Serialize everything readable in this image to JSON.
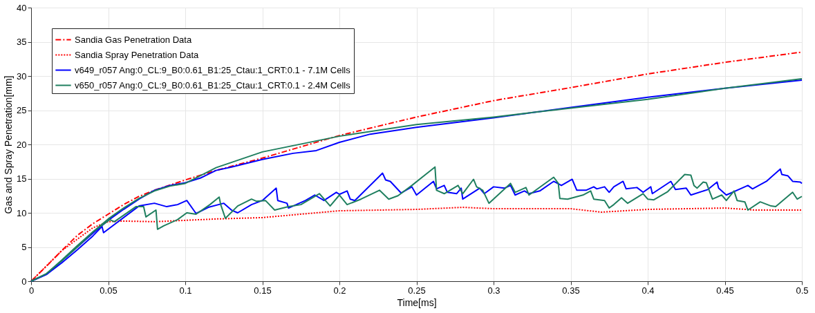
{
  "chart_data": {
    "type": "line",
    "xlabel": "Time[ms]",
    "ylabel": "Gas and Spray Penetration[mm]",
    "xlim": [
      0,
      0.5
    ],
    "ylim": [
      0,
      40
    ],
    "xticks": [
      0,
      0.05,
      0.1,
      0.15,
      0.2,
      0.25,
      0.3,
      0.35,
      0.4,
      0.45,
      0.5
    ],
    "yticks": [
      0,
      5,
      10,
      15,
      20,
      25,
      30,
      35,
      40
    ],
    "grid": true,
    "legend": "top left",
    "marker": "none",
    "series": [
      {
        "name": "Sandia Gas Penetration Data",
        "color": "#ff0000",
        "line_style": "dashed",
        "x": [
          0,
          0.01,
          0.02,
          0.03,
          0.04,
          0.05,
          0.06,
          0.07,
          0.08,
          0.1,
          0.12,
          0.15,
          0.2,
          0.25,
          0.3,
          0.35,
          0.4,
          0.45,
          0.5
        ],
        "values": [
          0,
          2.2,
          4.5,
          6.7,
          8.4,
          9.8,
          11.2,
          12.4,
          13.3,
          14.8,
          16.2,
          18,
          21.3,
          24,
          26.4,
          28.3,
          30.3,
          32,
          33.5
        ]
      },
      {
        "name": "Sandia Spray Penetration Data",
        "color": "#ff0000",
        "line_style": "dotted",
        "x": [
          0,
          0.02,
          0.04,
          0.05,
          0.06,
          0.08,
          0.1,
          0.12,
          0.15,
          0.2,
          0.25,
          0.28,
          0.3,
          0.35,
          0.37,
          0.4,
          0.45,
          0.47,
          0.5
        ],
        "values": [
          0,
          4.5,
          7.8,
          8.7,
          8.8,
          8.7,
          8.9,
          9.1,
          9.3,
          10.3,
          10.5,
          10.8,
          10.6,
          10.6,
          10.1,
          10.5,
          10.7,
          10.4,
          10.4
        ]
      },
      {
        "name": "v649_r057 Ang:0_CL:9_B0:0.61_B1:25_Ctau:1_CRT:0.1 - 7.1M Cells",
        "color": "#0000ff",
        "line_style": "solid",
        "x": [
          0,
          0.01,
          0.02,
          0.03,
          0.04,
          0.05,
          0.06,
          0.07,
          0.08,
          0.09,
          0.1,
          0.11,
          0.12,
          0.13,
          0.15,
          0.17,
          0.185,
          0.2,
          0.22,
          0.25,
          0.3,
          0.35,
          0.4,
          0.45,
          0.5
        ],
        "values": [
          0,
          1,
          3,
          5,
          7,
          8.9,
          10.5,
          12,
          13.3,
          14,
          14.4,
          15.1,
          16.2,
          16.7,
          17.8,
          18.7,
          19.1,
          20.3,
          21.5,
          22.5,
          23.9,
          25.4,
          26.9,
          28.2,
          29.4
        ]
      },
      {
        "name": "v650_r057 Ang:0_CL:9_B0:0.61_B1:25_Ctau:1_CRT:0.1 - 2.4M Cells",
        "color": "#1f7f5f",
        "line_style": "solid",
        "x": [
          0,
          0.01,
          0.02,
          0.03,
          0.04,
          0.05,
          0.06,
          0.07,
          0.08,
          0.09,
          0.1,
          0.12,
          0.15,
          0.2,
          0.25,
          0.3,
          0.35,
          0.4,
          0.45,
          0.5
        ],
        "values": [
          0,
          1.1,
          3.1,
          5.2,
          7.2,
          9.1,
          10.7,
          12.1,
          13.2,
          13.9,
          14.3,
          16.6,
          18.9,
          21.2,
          22.9,
          24,
          25.3,
          26.6,
          28.2,
          29.6
        ]
      },
      {
        "color": "#0000ff",
        "line_style": "solid",
        "x": [
          0,
          0.01,
          0.02,
          0.03,
          0.04,
          0.046,
          0.047,
          0.07,
          0.08,
          0.088,
          0.095,
          0.101,
          0.107,
          0.115,
          0.125,
          0.13,
          0.134,
          0.143,
          0.15,
          0.159,
          0.16,
          0.166,
          0.167,
          0.178,
          0.184,
          0.19,
          0.198,
          0.2,
          0.205,
          0.207,
          0.21,
          0.228,
          0.23,
          0.233,
          0.24,
          0.247,
          0.25,
          0.261,
          0.263,
          0.268,
          0.27,
          0.276,
          0.279,
          0.28,
          0.291,
          0.294,
          0.3,
          0.307,
          0.311,
          0.314,
          0.32,
          0.323,
          0.33,
          0.339,
          0.344,
          0.351,
          0.354,
          0.36,
          0.365,
          0.367,
          0.372,
          0.375,
          0.378,
          0.384,
          0.386,
          0.393,
          0.397,
          0.402,
          0.403,
          0.415,
          0.418,
          0.425,
          0.428,
          0.439,
          0.445,
          0.446,
          0.451,
          0.461,
          0.465,
          0.468,
          0.477,
          0.486,
          0.487,
          0.491,
          0.494,
          0.499,
          0.5
        ],
        "values": [
          0,
          1,
          2.7,
          4.6,
          6.6,
          8,
          7.1,
          11,
          11.4,
          10.9,
          11.2,
          11.8,
          9.9,
          10.8,
          11.4,
          10.4,
          10,
          11.2,
          11.8,
          13.6,
          11.8,
          11.4,
          10.7,
          11.8,
          12.6,
          11.8,
          13,
          12.7,
          13.2,
          12,
          11.8,
          15.8,
          14.8,
          14.6,
          12.9,
          13.8,
          12.6,
          14.6,
          13.5,
          14,
          13,
          12.8,
          13.6,
          12,
          13.6,
          12.8,
          13.8,
          13.6,
          14,
          12.6,
          13.2,
          12.8,
          13.2,
          14.6,
          14,
          14.9,
          13.3,
          13.3,
          13.8,
          13.5,
          13.8,
          13,
          13.8,
          14.6,
          13.5,
          13.7,
          13,
          13.8,
          12.8,
          14.6,
          13.4,
          13.6,
          12.6,
          13.4,
          14.5,
          13.6,
          12.6,
          13.6,
          14,
          13.5,
          14.6,
          16.4,
          15.6,
          15.4,
          14.6,
          14.5,
          14.3
        ]
      },
      {
        "color": "#1f7f5f",
        "line_style": "solid",
        "x": [
          0,
          0.01,
          0.02,
          0.03,
          0.04,
          0.051,
          0.054,
          0.068,
          0.073,
          0.0745,
          0.081,
          0.082,
          0.086,
          0.095,
          0.101,
          0.107,
          0.116,
          0.122,
          0.123,
          0.126,
          0.134,
          0.143,
          0.146,
          0.152,
          0.158,
          0.167,
          0.175,
          0.187,
          0.194,
          0.2,
          0.205,
          0.214,
          0.226,
          0.232,
          0.238,
          0.247,
          0.262,
          0.263,
          0.268,
          0.277,
          0.28,
          0.287,
          0.289,
          0.293,
          0.297,
          0.311,
          0.314,
          0.321,
          0.323,
          0.339,
          0.342,
          0.343,
          0.348,
          0.358,
          0.363,
          0.365,
          0.372,
          0.375,
          0.378,
          0.383,
          0.387,
          0.397,
          0.4,
          0.404,
          0.413,
          0.424,
          0.428,
          0.43,
          0.432,
          0.436,
          0.438,
          0.442,
          0.448,
          0.451,
          0.456,
          0.458,
          0.463,
          0.465,
          0.473,
          0.48,
          0.483,
          0.494,
          0.497,
          0.5
        ],
        "values": [
          0,
          1.1,
          3,
          5,
          7.2,
          9,
          8.7,
          10.9,
          10.9,
          9.4,
          10.4,
          7.6,
          8.1,
          9,
          10,
          9.8,
          11.2,
          12.3,
          11.2,
          9.2,
          11,
          12,
          11.7,
          11.8,
          10.4,
          10.9,
          11.2,
          12.8,
          11,
          12.6,
          11.2,
          12,
          13.3,
          12,
          12.5,
          14,
          16.7,
          13.3,
          12.8,
          14,
          12.8,
          14.9,
          13.8,
          13.3,
          11.4,
          14.3,
          13,
          13.7,
          12.6,
          15.2,
          14.3,
          12.1,
          12,
          12.6,
          13.2,
          12,
          11.8,
          10.7,
          11.2,
          12.2,
          11.4,
          12.8,
          12,
          11.9,
          13.1,
          15.6,
          15.5,
          14,
          13.6,
          14.5,
          14.4,
          12,
          12.6,
          11.8,
          13.2,
          11.8,
          11.6,
          10.4,
          11.6,
          11,
          10.9,
          13,
          12,
          12.4
        ]
      }
    ]
  }
}
